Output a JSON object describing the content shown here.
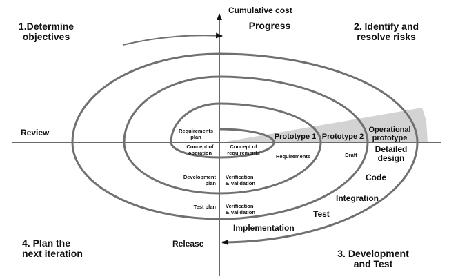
{
  "axes": {
    "vertical": "Cumulative cost",
    "progress": "Progress"
  },
  "quadrants": {
    "q1": [
      "1.Determine",
      "objectives"
    ],
    "q2": [
      "2. Identify and",
      "resolve risks"
    ],
    "q3": [
      "3. Development",
      "and Test"
    ],
    "q4": [
      "4. Plan the",
      "next iteration"
    ]
  },
  "labels": {
    "review": "Review",
    "release": "Release",
    "requirements_plan": [
      "Requirements",
      "plan"
    ],
    "concept_of_operation": [
      "Concept of",
      "operation"
    ],
    "concept_of_requirements": [
      "Concept of",
      "requirements"
    ],
    "prototype1": "Prototype 1",
    "prototype2": "Prototype 2",
    "operational_prototype": [
      "Operational",
      "prototype"
    ],
    "requirements": "Requirements",
    "draft": "Draft",
    "detailed_design": [
      "Detailed",
      "design"
    ],
    "development_plan": [
      "Development",
      "plan"
    ],
    "vv1": [
      "Verification",
      "& Validation"
    ],
    "test_plan": "Test plan",
    "vv2": [
      "Verification",
      "& Validation"
    ],
    "code": "Code",
    "integration": "Integration",
    "test": "Test",
    "implementation": "Implementation"
  },
  "colors": {
    "line": "#707070",
    "shade": "#d3d3d3",
    "axis": "#6a6a6a"
  }
}
